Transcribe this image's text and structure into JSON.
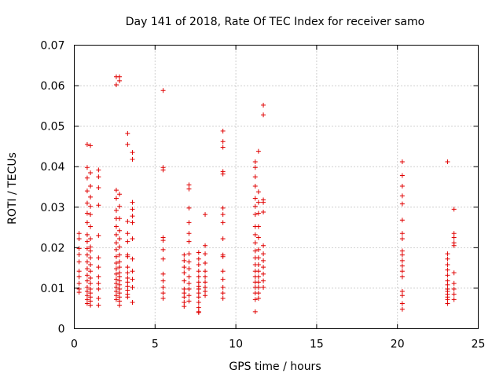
{
  "chart_data": {
    "type": "scatter",
    "title": "Day 141 of 2018, Rate Of TEC Index for receiver samo",
    "xlabel": "GPS time / hours",
    "ylabel": "ROTI / TECUs",
    "xlim": [
      0,
      25
    ],
    "ylim": [
      0,
      0.07
    ],
    "xticks": [
      0,
      5,
      10,
      15,
      20,
      25
    ],
    "xtick_labels": [
      "0",
      "5",
      "10",
      "15",
      "20",
      "25"
    ],
    "yticks": [
      0,
      0.01,
      0.02,
      0.03,
      0.04,
      0.05,
      0.06,
      0.07
    ],
    "ytick_labels": [
      "0",
      "0.01",
      "0.02",
      "0.03",
      "0.04",
      "0.05",
      "0.06",
      "0.07"
    ],
    "grid": true,
    "marker": "+",
    "color": "#e00000",
    "series": [
      {
        "name": "ROTI",
        "x": [
          0.3,
          0.3,
          0.3,
          0.3,
          0.3,
          0.3,
          0.3,
          0.3,
          0.3,
          0.3,
          0.8,
          0.8,
          0.8,
          0.8,
          0.8,
          0.8,
          0.8,
          0.8,
          0.8,
          0.8,
          0.8,
          0.8,
          0.8,
          0.8,
          0.8,
          0.8,
          0.8,
          0.8,
          0.8,
          0.8,
          1.0,
          1.0,
          1.0,
          1.0,
          1.0,
          1.0,
          1.0,
          1.0,
          1.0,
          1.0,
          1.0,
          1.0,
          1.0,
          1.0,
          1.0,
          1.0,
          1.0,
          1.0,
          1.0,
          1.0,
          1.5,
          1.5,
          1.5,
          1.5,
          1.5,
          1.5,
          1.5,
          1.5,
          1.5,
          1.5,
          1.5,
          1.5,
          2.6,
          2.6,
          2.6,
          2.6,
          2.6,
          2.6,
          2.6,
          2.6,
          2.6,
          2.6,
          2.6,
          2.6,
          2.6,
          2.6,
          2.6,
          2.6,
          2.6,
          2.6,
          2.6,
          2.6,
          2.8,
          2.8,
          2.8,
          2.8,
          2.8,
          2.8,
          2.8,
          2.8,
          2.8,
          2.8,
          2.8,
          2.8,
          2.8,
          2.8,
          2.8,
          2.8,
          2.8,
          2.8,
          2.8,
          2.8,
          3.3,
          3.3,
          3.3,
          3.3,
          3.3,
          3.3,
          3.3,
          3.3,
          3.3,
          3.3,
          3.3,
          3.3,
          3.3,
          3.3,
          3.3,
          3.6,
          3.6,
          3.6,
          3.6,
          3.6,
          3.6,
          3.6,
          3.6,
          3.6,
          3.6,
          3.6,
          3.6,
          5.5,
          5.5,
          5.5,
          5.5,
          5.5,
          5.5,
          5.5,
          5.5,
          5.5,
          5.5,
          5.5,
          5.5,
          6.8,
          6.8,
          6.8,
          6.8,
          6.8,
          6.8,
          6.8,
          6.8,
          6.8,
          6.8,
          7.1,
          7.1,
          7.1,
          7.1,
          7.1,
          7.1,
          7.1,
          7.1,
          7.1,
          7.1,
          7.1,
          7.1,
          7.1,
          7.1,
          7.7,
          7.7,
          7.7,
          7.7,
          7.7,
          7.7,
          7.7,
          7.7,
          7.7,
          7.7,
          7.7,
          7.7,
          7.7,
          7.7,
          8.1,
          8.1,
          8.1,
          8.1,
          8.1,
          8.1,
          8.1,
          8.1,
          8.1,
          8.1,
          9.2,
          9.2,
          9.2,
          9.2,
          9.2,
          9.2,
          9.2,
          9.2,
          9.2,
          9.2,
          9.2,
          9.2,
          9.2,
          9.2,
          9.2,
          9.2,
          11.2,
          11.2,
          11.2,
          11.2,
          11.2,
          11.2,
          11.2,
          11.2,
          11.2,
          11.2,
          11.2,
          11.2,
          11.2,
          11.2,
          11.2,
          11.2,
          11.2,
          11.2,
          11.2,
          11.2,
          11.4,
          11.4,
          11.4,
          11.4,
          11.4,
          11.4,
          11.4,
          11.4,
          11.4,
          11.4,
          11.4,
          11.4,
          11.4,
          11.4,
          11.4,
          11.7,
          11.7,
          11.7,
          11.7,
          11.7,
          11.7,
          11.7,
          11.7,
          11.7,
          11.7,
          11.7,
          11.7,
          20.3,
          20.3,
          20.3,
          20.3,
          20.3,
          20.3,
          20.3,
          20.3,
          20.3,
          20.3,
          20.3,
          20.3,
          20.3,
          20.3,
          20.3,
          20.3,
          20.3,
          20.3,
          23.1,
          23.1,
          23.1,
          23.1,
          23.1,
          23.1,
          23.1,
          23.1,
          23.1,
          23.1,
          23.1,
          23.1,
          23.1,
          23.1,
          23.5,
          23.5,
          23.5,
          23.5,
          23.5,
          23.5,
          23.5,
          23.5,
          23.5,
          23.5
        ],
        "y": [
          0.0235,
          0.0222,
          0.0198,
          0.0183,
          0.0165,
          0.0142,
          0.0128,
          0.0112,
          0.0098,
          0.009,
          0.0455,
          0.0398,
          0.0372,
          0.034,
          0.031,
          0.0285,
          0.0262,
          0.0232,
          0.0215,
          0.0198,
          0.0182,
          0.0165,
          0.0148,
          0.0132,
          0.0118,
          0.0102,
          0.0092,
          0.0082,
          0.0072,
          0.0062,
          0.0452,
          0.0385,
          0.0352,
          0.0325,
          0.0302,
          0.0282,
          0.0252,
          0.0222,
          0.0202,
          0.0192,
          0.0175,
          0.0158,
          0.0142,
          0.0125,
          0.0112,
          0.0098,
          0.0088,
          0.0078,
          0.0068,
          0.0058,
          0.0392,
          0.0375,
          0.0348,
          0.0305,
          0.023,
          0.0175,
          0.0152,
          0.0128,
          0.0112,
          0.0098,
          0.0075,
          0.0058,
          0.0622,
          0.0602,
          0.0342,
          0.0322,
          0.0292,
          0.0272,
          0.0252,
          0.0232,
          0.0212,
          0.0195,
          0.0178,
          0.0162,
          0.0148,
          0.0135,
          0.0122,
          0.0112,
          0.0102,
          0.0092,
          0.0082,
          0.0072,
          0.0622,
          0.0612,
          0.0332,
          0.0302,
          0.0272,
          0.0242,
          0.0222,
          0.0202,
          0.0182,
          0.0165,
          0.0152,
          0.0138,
          0.0128,
          0.0118,
          0.0108,
          0.0098,
          0.0088,
          0.0078,
          0.0068,
          0.0058,
          0.0482,
          0.0455,
          0.0265,
          0.0235,
          0.0215,
          0.0182,
          0.0178,
          0.0152,
          0.0138,
          0.0125,
          0.0115,
          0.0105,
          0.0095,
          0.0085,
          0.0078,
          0.0435,
          0.0418,
          0.0312,
          0.0295,
          0.0278,
          0.0262,
          0.0222,
          0.0172,
          0.0142,
          0.0122,
          0.0102,
          0.0065,
          0.0588,
          0.0398,
          0.0392,
          0.0225,
          0.0218,
          0.0195,
          0.0172,
          0.0135,
          0.0118,
          0.0102,
          0.0088,
          0.0075,
          0.0182,
          0.0168,
          0.0152,
          0.0138,
          0.0118,
          0.0098,
          0.0088,
          0.0078,
          0.0065,
          0.0055,
          0.0355,
          0.0345,
          0.0298,
          0.0262,
          0.0235,
          0.0215,
          0.0185,
          0.0165,
          0.0148,
          0.0128,
          0.0112,
          0.0098,
          0.0082,
          0.0068,
          0.0188,
          0.0172,
          0.0158,
          0.0142,
          0.0128,
          0.0115,
          0.0105,
          0.0098,
          0.0088,
          0.0078,
          0.0065,
          0.0052,
          0.0042,
          0.004,
          0.0282,
          0.0205,
          0.0185,
          0.0162,
          0.0142,
          0.0128,
          0.0115,
          0.0102,
          0.0092,
          0.0082,
          0.0488,
          0.0462,
          0.0448,
          0.0388,
          0.0382,
          0.0298,
          0.0282,
          0.0262,
          0.0222,
          0.0182,
          0.0178,
          0.0142,
          0.0122,
          0.0102,
          0.0088,
          0.0075,
          0.0412,
          0.0398,
          0.0375,
          0.0352,
          0.0322,
          0.0302,
          0.0282,
          0.0252,
          0.0232,
          0.0212,
          0.0192,
          0.0175,
          0.0158,
          0.0142,
          0.0128,
          0.0115,
          0.0102,
          0.0088,
          0.0072,
          0.0042,
          0.0438,
          0.0338,
          0.0312,
          0.0285,
          0.0252,
          0.0225,
          0.0195,
          0.0175,
          0.0158,
          0.0142,
          0.0128,
          0.0115,
          0.0102,
          0.0088,
          0.0075,
          0.0552,
          0.0528,
          0.0318,
          0.0312,
          0.0288,
          0.0205,
          0.0185,
          0.0168,
          0.0152,
          0.0135,
          0.0118,
          0.0102,
          0.0412,
          0.0378,
          0.0352,
          0.0328,
          0.0308,
          0.0268,
          0.0235,
          0.0222,
          0.0192,
          0.0182,
          0.0168,
          0.0155,
          0.0142,
          0.0128,
          0.0092,
          0.0082,
          0.0062,
          0.0048,
          0.0412,
          0.0185,
          0.0172,
          0.0158,
          0.0145,
          0.0132,
          0.0118,
          0.0108,
          0.0098,
          0.0092,
          0.0085,
          0.0078,
          0.0072,
          0.0062,
          0.0295,
          0.0235,
          0.0225,
          0.0212,
          0.0205,
          0.0138,
          0.0112,
          0.0098,
          0.0085,
          0.0072
        ]
      }
    ]
  }
}
